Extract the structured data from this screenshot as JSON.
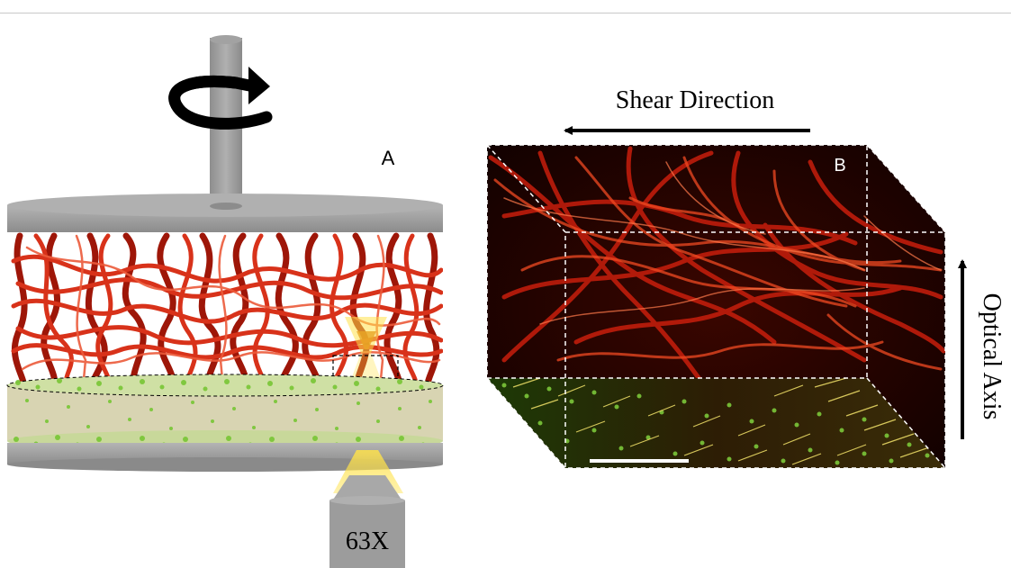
{
  "panel_a": {
    "label": "A",
    "objective_label": "63X"
  },
  "panel_b": {
    "label": "B",
    "shear_label": "Shear Direction",
    "optical_axis_label": "Optical Axis"
  },
  "colors": {
    "fiber_red": "#c81e0c",
    "bead_green": "#7cc73a",
    "gray": "#9c9c9c",
    "confocal_bg": "#1a0300",
    "laser_yellow": "#ffe24a"
  }
}
